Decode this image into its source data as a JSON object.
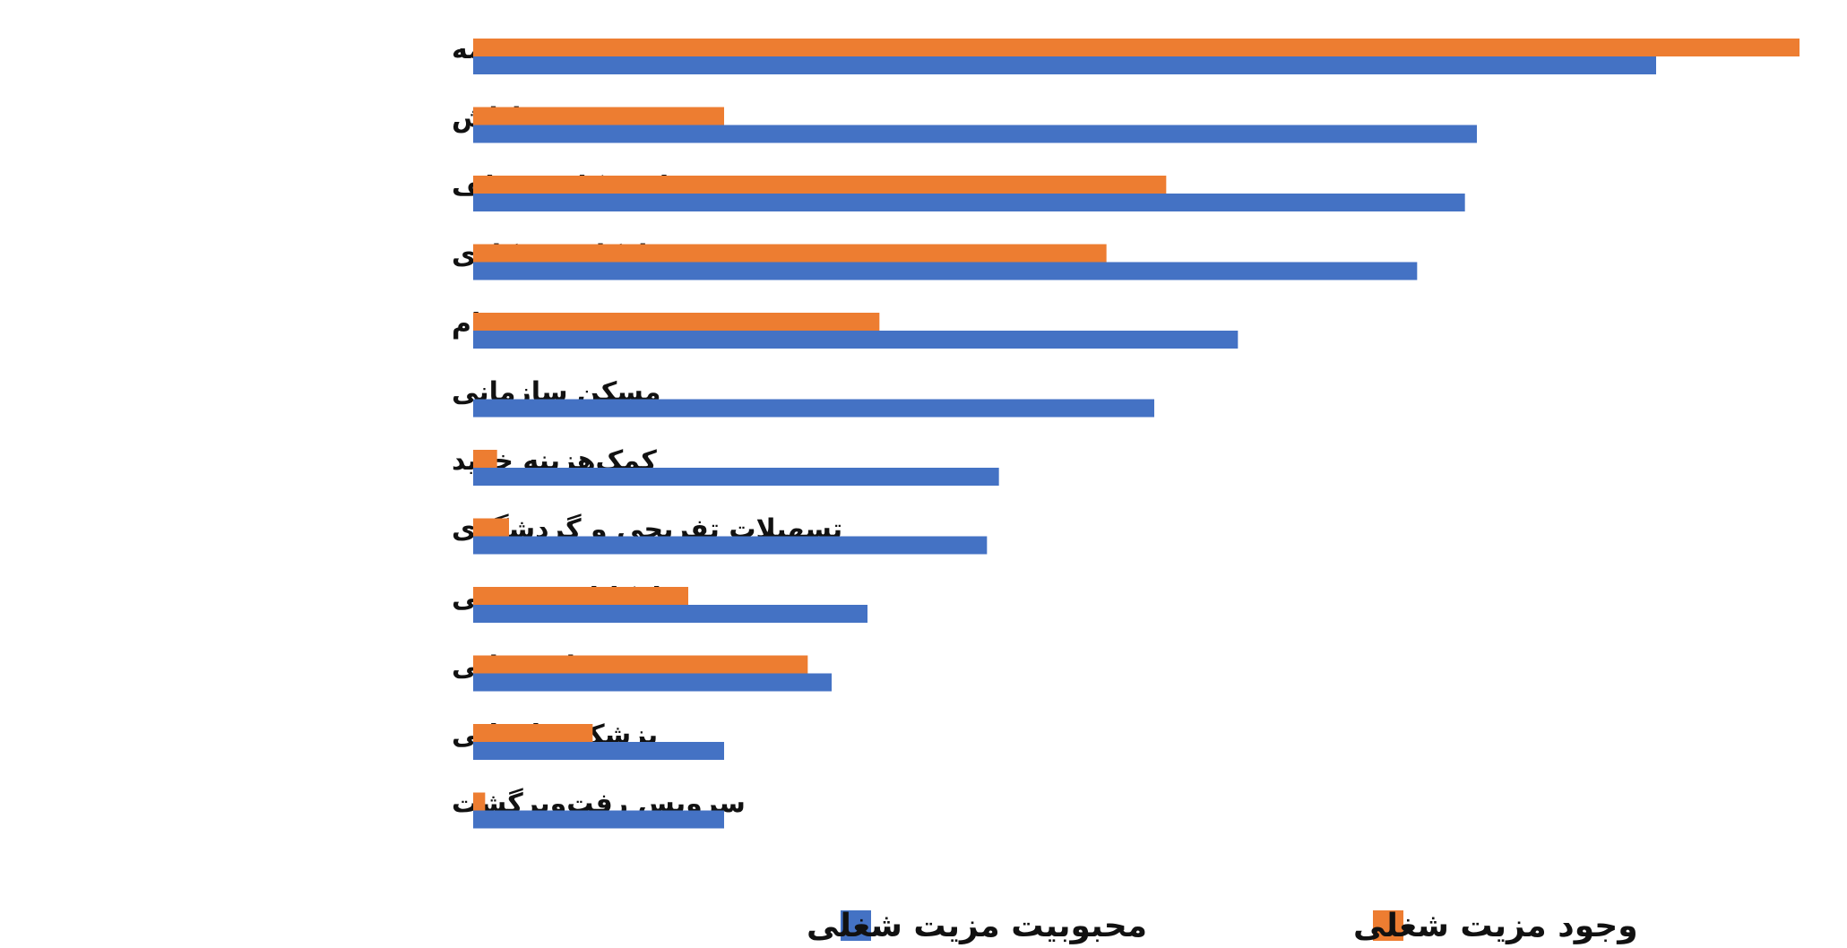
{
  "chart_data": {
    "type": "bar",
    "orientation": "horizontal",
    "categories": [
      "بیمه",
      "پاداش",
      "ساعت کار منعطف",
      "امکان دورکاری",
      "وام",
      "مسکن سازمانی",
      "کمک‌هزینه خرید",
      "تسهیلات تفریحی و گردشگری",
      "امکانات ورزشی",
      "وعده‌های غذایی",
      "پزشک سازمانی",
      "سرویس رفت‌وبرگشت"
    ],
    "series": [
      {
        "name": "وجود مزیت شغلی",
        "color": "#ED7D31",
        "values": [
          111,
          21,
          58,
          53,
          34,
          0,
          2,
          3,
          18,
          28,
          10,
          1
        ]
      },
      {
        "name": "محبوبیت مزیت شغلی",
        "color": "#4472C4",
        "values": [
          99,
          84,
          83,
          79,
          64,
          57,
          44,
          43,
          33,
          30,
          21,
          21
        ]
      }
    ],
    "xlim": [
      0,
      111
    ],
    "grid": false,
    "axes_visible": false,
    "legend_position": "bottom"
  }
}
